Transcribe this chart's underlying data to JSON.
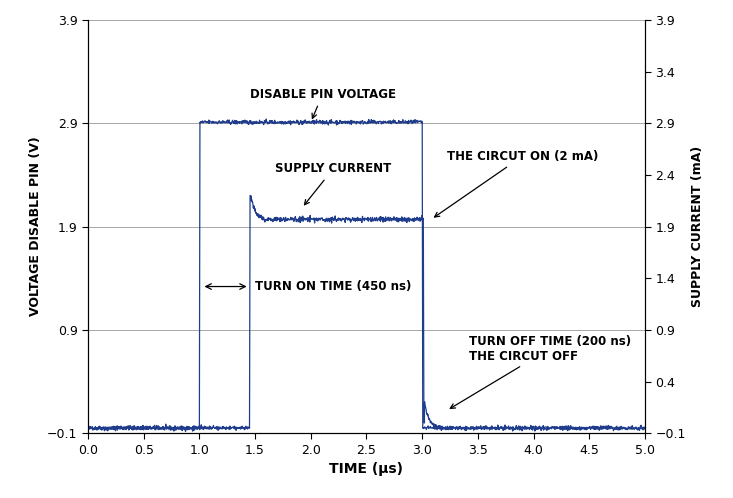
{
  "title": "",
  "xlabel": "TIME (μs)",
  "ylabel_left": "VOLTAGE DISABLE PIN (V)",
  "ylabel_right": "SUPPLY CURRENT (mA)",
  "xlim": [
    0.0,
    5.0
  ],
  "ylim": [
    -0.1,
    3.9
  ],
  "yticks_left": [
    -0.1,
    0.9,
    1.9,
    2.9,
    3.9
  ],
  "yticks_right": [
    -0.1,
    0.4,
    0.9,
    1.4,
    1.9,
    2.4,
    2.9,
    3.4,
    3.9
  ],
  "xticks": [
    0.0,
    0.5,
    1.0,
    1.5,
    2.0,
    2.5,
    3.0,
    3.5,
    4.0,
    4.5,
    5.0
  ],
  "grid_color": "#999999",
  "line_color": "#1f3d8c",
  "noise_amplitude": 0.01,
  "bg_color": "#ffffff",
  "voltage_low": -0.05,
  "voltage_high": 2.91,
  "current_low": -0.05,
  "current_peak": 2.2,
  "current_settle": 1.97,
  "v_rise_t": 1.0,
  "v_fall_t": 3.0,
  "c_rise_t": 1.45,
  "c_fall_t": 3.01
}
